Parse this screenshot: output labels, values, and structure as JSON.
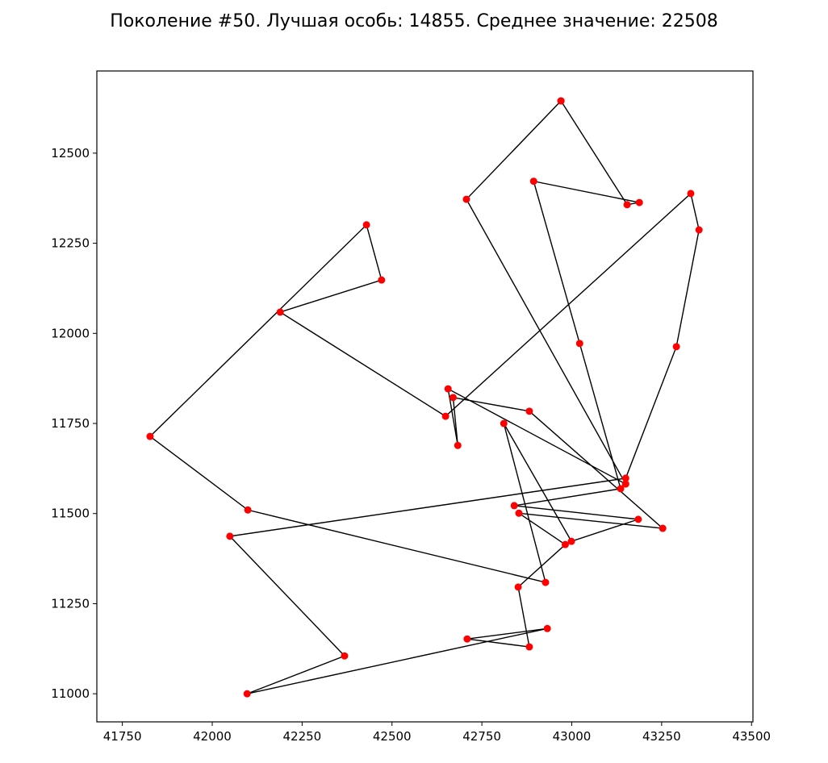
{
  "chart_data": {
    "type": "line",
    "title": "Поколение #50. Лучшая особь: 14855. Среднее значение: 22508",
    "xlabel": "",
    "ylabel": "",
    "xlim": [
      41679,
      43504
    ],
    "ylim": [
      10922,
      12728
    ],
    "xticks": [
      41750,
      42000,
      42250,
      42500,
      42750,
      43000,
      43250,
      43500
    ],
    "yticks": [
      11000,
      11250,
      11500,
      11750,
      12000,
      12250,
      12500
    ],
    "grid": false,
    "line_color": "#000000",
    "marker_color": "#ff0000",
    "route": [
      [
        42970,
        12645
      ],
      [
        42707,
        12372
      ],
      [
        43150,
        11582
      ],
      [
        42656,
        11846
      ],
      [
        42683,
        11689
      ],
      [
        42670,
        11822
      ],
      [
        42882,
        11784
      ],
      [
        43253,
        11459
      ],
      [
        42853,
        11501
      ],
      [
        42982,
        11414
      ],
      [
        42851,
        11296
      ],
      [
        42882,
        11130
      ],
      [
        42709,
        11152
      ],
      [
        42932,
        11181
      ],
      [
        42097,
        11000
      ],
      [
        42368,
        11105
      ],
      [
        42049,
        11437
      ],
      [
        43150,
        11598
      ],
      [
        43291,
        11963
      ],
      [
        43354,
        12287
      ],
      [
        43331,
        12388
      ],
      [
        42649,
        11770
      ],
      [
        42189,
        12059
      ],
      [
        42471,
        12148
      ],
      [
        42429,
        12301
      ],
      [
        41827,
        11714
      ],
      [
        42099,
        11510
      ],
      [
        42927,
        11309
      ],
      [
        42811,
        11750
      ],
      [
        42999,
        11423
      ],
      [
        43185,
        11484
      ],
      [
        42840,
        11522
      ],
      [
        43136,
        11569
      ],
      [
        43022,
        11972
      ],
      [
        42894,
        12422
      ],
      [
        43188,
        12363
      ],
      [
        43154,
        12357
      ],
      [
        42970,
        12645
      ]
    ]
  }
}
